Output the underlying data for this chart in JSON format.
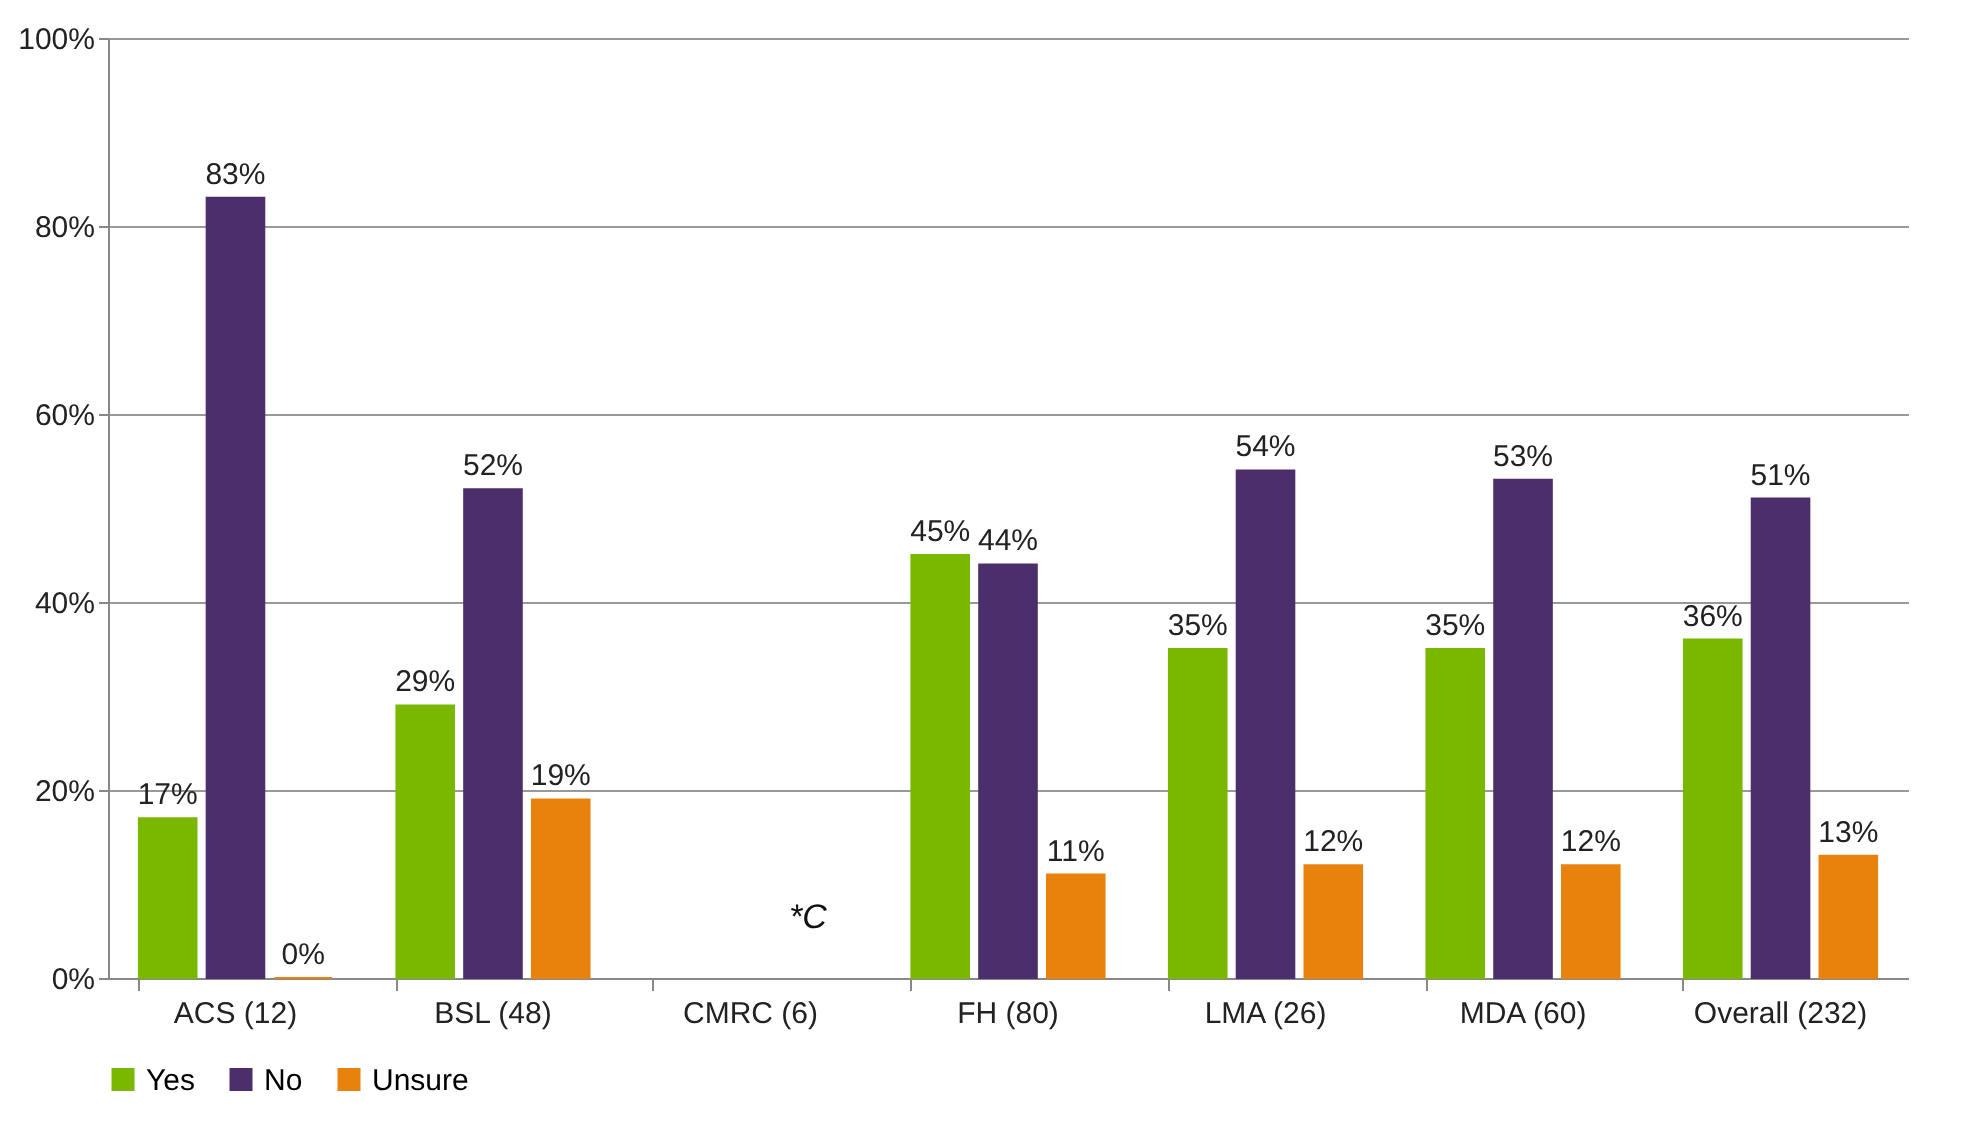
{
  "chart_data": {
    "type": "bar",
    "categories": [
      "ACS (12)",
      "BSL (48)",
      "CMRC (6)",
      "FH (80)",
      "LMA (26)",
      "MDA (60)",
      "Overall (232)"
    ],
    "series": [
      {
        "name": "Yes",
        "color": "#7ab800",
        "values": [
          17,
          29,
          null,
          45,
          35,
          35,
          36
        ],
        "value_labels": [
          "17%",
          "29%",
          null,
          "45%",
          "35%",
          "35%",
          "36%"
        ]
      },
      {
        "name": "No",
        "color": "#4b2e6b",
        "values": [
          83,
          52,
          null,
          44,
          54,
          53,
          51
        ],
        "value_labels": [
          "83%",
          "52%",
          null,
          "44%",
          "54%",
          "53%",
          "51%"
        ]
      },
      {
        "name": "Unsure",
        "color": "#e8820c",
        "values": [
          0,
          19,
          null,
          11,
          12,
          12,
          13
        ],
        "value_labels": [
          "0%",
          "19%",
          null,
          "11%",
          "12%",
          "12%",
          "13%"
        ]
      }
    ],
    "ylim": [
      0,
      100
    ],
    "yticks": [
      {
        "value": 0,
        "label": "0%"
      },
      {
        "value": 20,
        "label": "20%"
      },
      {
        "value": 40,
        "label": "40%"
      },
      {
        "value": 60,
        "label": "60%"
      },
      {
        "value": 80,
        "label": "80%"
      },
      {
        "value": 100,
        "label": "100%"
      }
    ],
    "grid": "y",
    "legend": "bottom",
    "annotations": [
      "*C"
    ]
  }
}
